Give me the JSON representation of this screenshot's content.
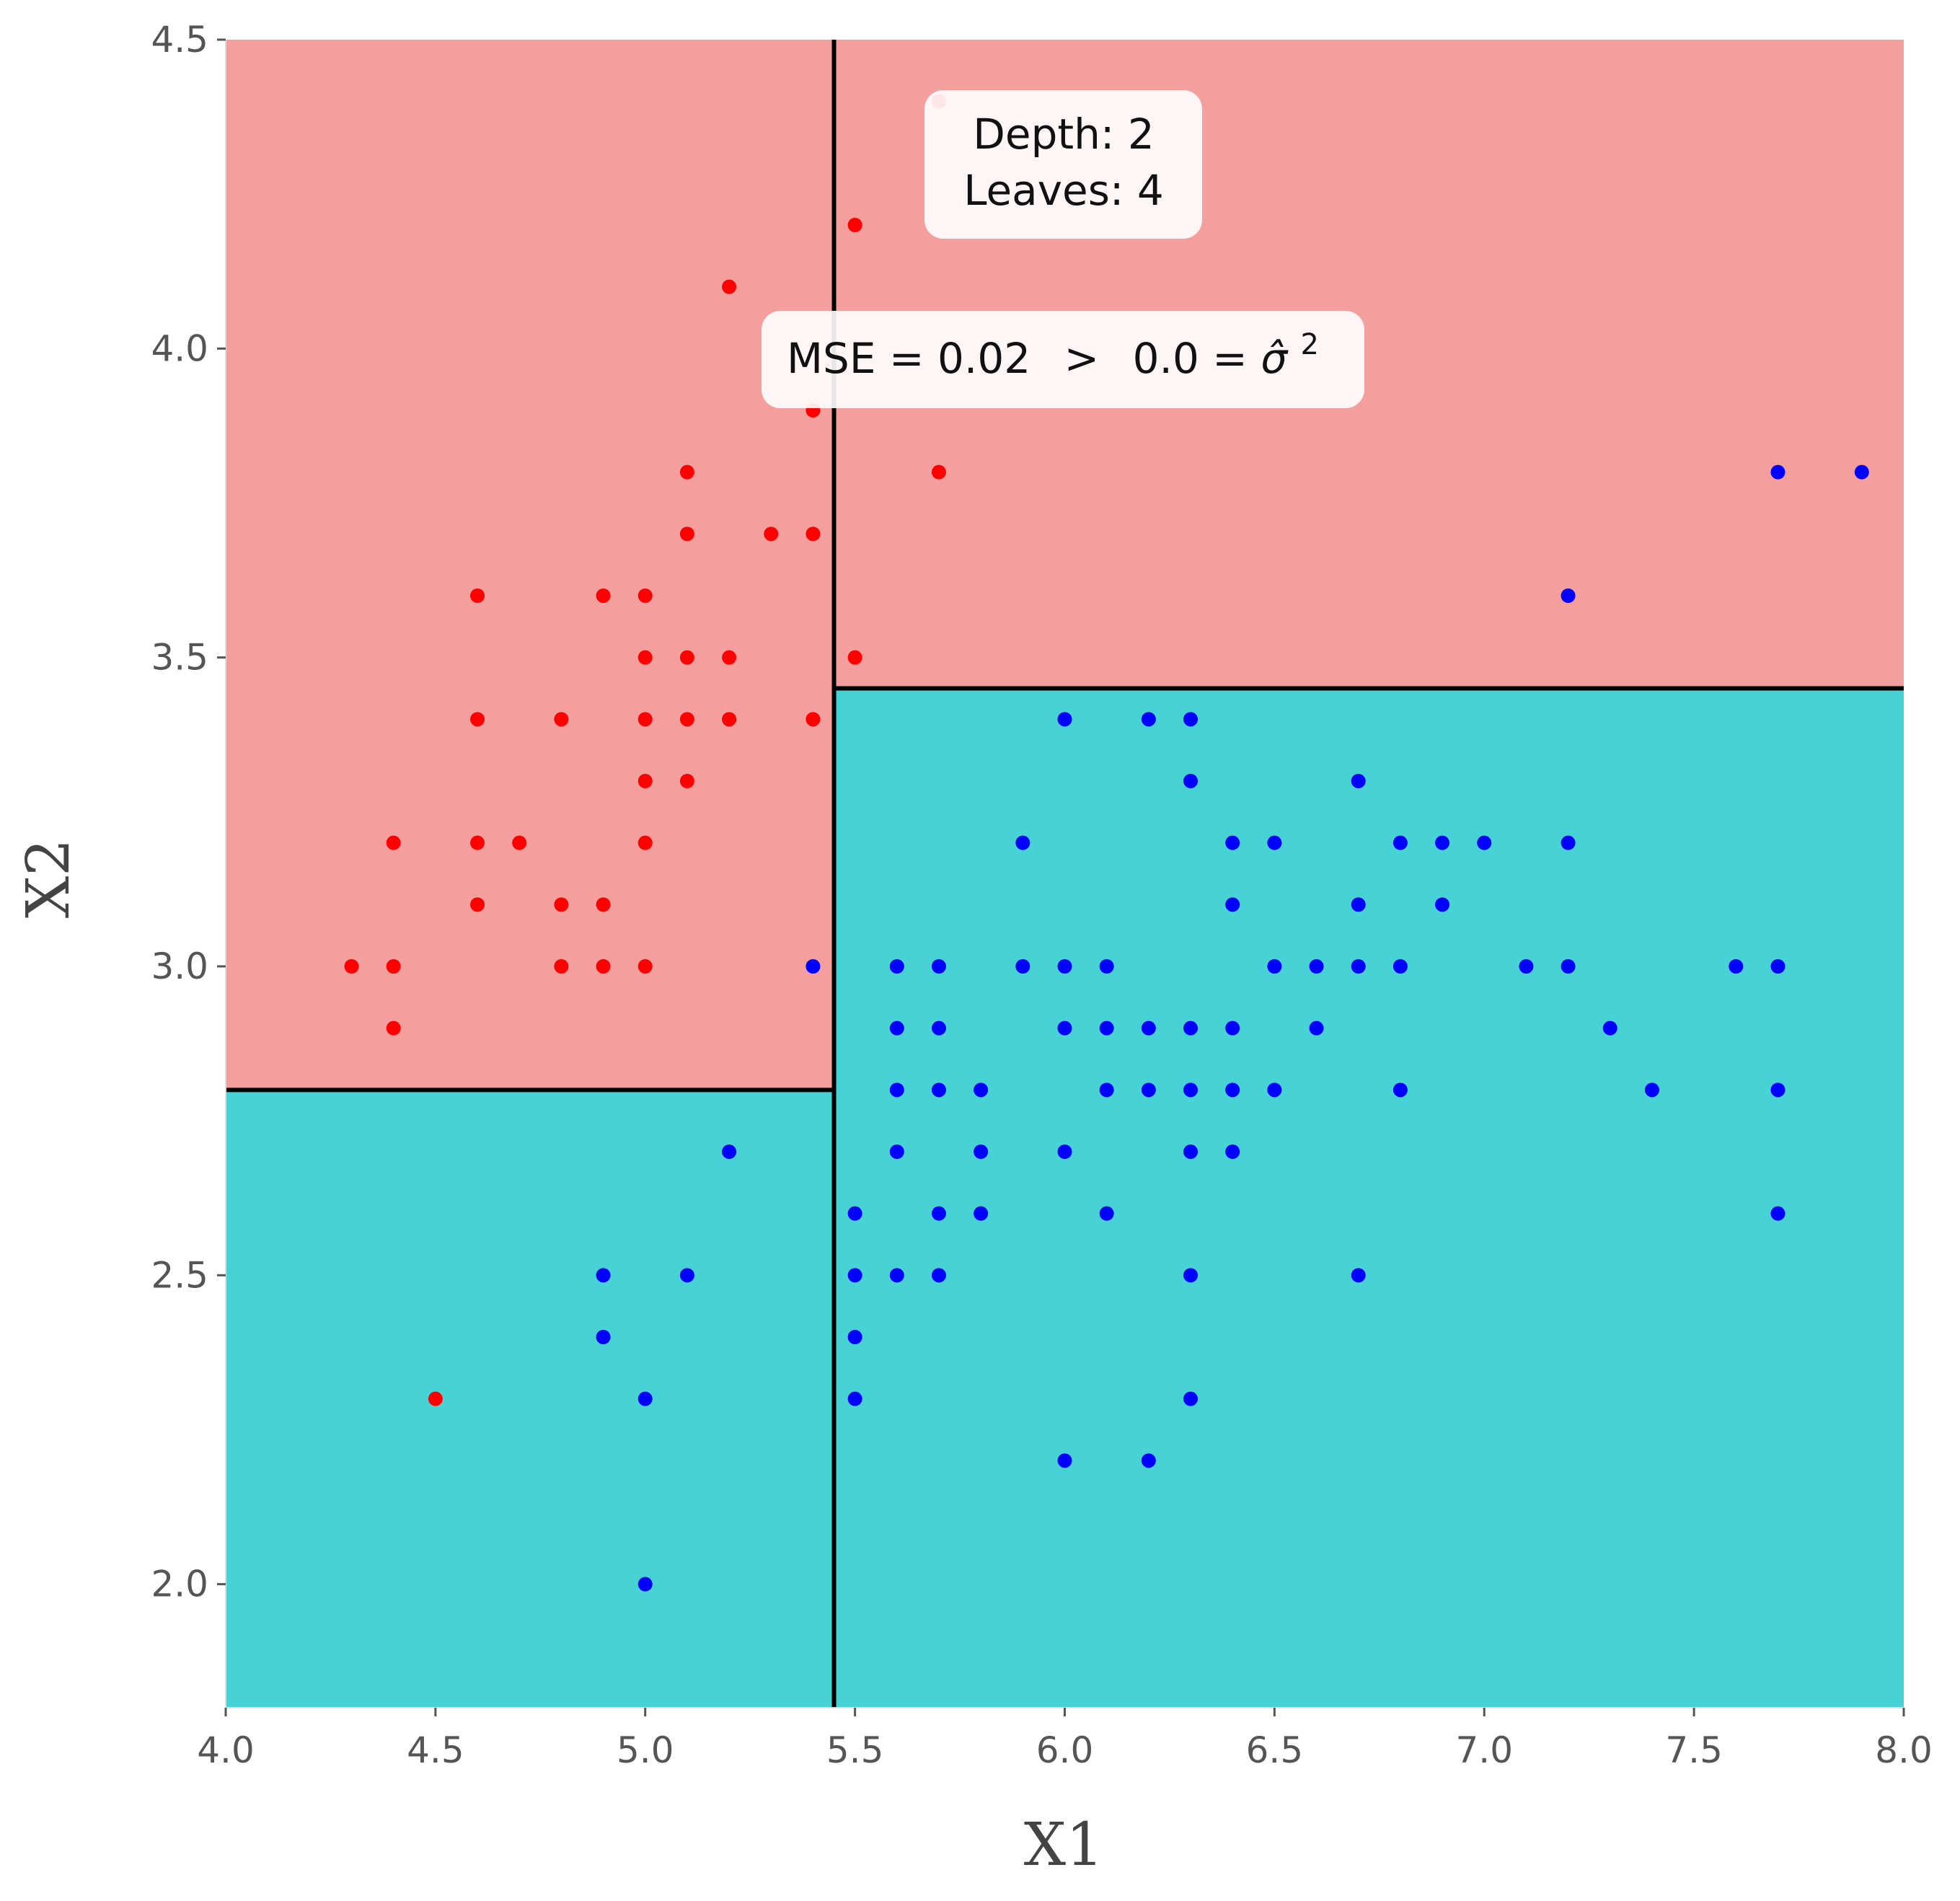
{
  "chart_data": {
    "type": "scatter",
    "xlabel": "X1",
    "ylabel": "X2",
    "xlim": [
      4.0,
      8.0
    ],
    "ylim": [
      1.8,
      4.5
    ],
    "xticks": [
      "4.0",
      "4.5",
      "5.0",
      "5.5",
      "6.0",
      "6.5",
      "7.0",
      "7.5",
      "8.0"
    ],
    "yticks": [
      "2.0",
      "2.5",
      "3.0",
      "3.5",
      "4.0",
      "4.5"
    ],
    "grid": false,
    "annotations": {
      "depth": "Depth: 2",
      "leaves": "Leaves: 4",
      "mse_text": "MSE = 0.02",
      "gt": ">",
      "sigma_value": "0.0 = ",
      "sigma_symbol": "σ̂",
      "sigma_exp": "2"
    },
    "regions": [
      {
        "x": [
          4.0,
          5.45
        ],
        "y": [
          2.8,
          4.5
        ],
        "color": "#f59e9e"
      },
      {
        "x": [
          4.0,
          5.45
        ],
        "y": [
          1.8,
          2.8
        ],
        "color": "#47d3d5"
      },
      {
        "x": [
          5.45,
          8.0
        ],
        "y": [
          3.45,
          4.5
        ],
        "color": "#f59e9e"
      },
      {
        "x": [
          5.45,
          8.0
        ],
        "y": [
          1.8,
          3.45
        ],
        "color": "#47d3d5"
      }
    ],
    "splits": [
      {
        "x": [
          5.45,
          5.45
        ],
        "y": [
          1.8,
          4.5
        ]
      },
      {
        "x": [
          4.0,
          5.45
        ],
        "y": [
          2.8,
          2.8
        ]
      },
      {
        "x": [
          5.45,
          8.0
        ],
        "y": [
          3.45,
          3.45
        ]
      }
    ],
    "series": [
      {
        "color": "#ff0000",
        "points": [
          [
            4.3,
            3.0
          ],
          [
            4.4,
            3.2
          ],
          [
            4.4,
            3.0
          ],
          [
            4.4,
            2.9
          ],
          [
            4.5,
            2.3
          ],
          [
            4.6,
            3.6
          ],
          [
            4.6,
            3.4
          ],
          [
            4.6,
            3.2
          ],
          [
            4.6,
            3.1
          ],
          [
            4.7,
            3.2
          ],
          [
            4.8,
            3.4
          ],
          [
            4.8,
            3.1
          ],
          [
            4.8,
            3.0
          ],
          [
            4.9,
            3.6
          ],
          [
            4.9,
            3.1
          ],
          [
            4.9,
            3.0
          ],
          [
            5.0,
            3.6
          ],
          [
            5.0,
            3.5
          ],
          [
            5.0,
            3.4
          ],
          [
            5.0,
            3.3
          ],
          [
            5.0,
            3.2
          ],
          [
            5.0,
            3.0
          ],
          [
            5.1,
            3.8
          ],
          [
            5.1,
            3.7
          ],
          [
            5.1,
            3.5
          ],
          [
            5.1,
            3.4
          ],
          [
            5.1,
            3.3
          ],
          [
            5.2,
            4.1
          ],
          [
            5.2,
            3.5
          ],
          [
            5.2,
            3.4
          ],
          [
            5.3,
            3.7
          ],
          [
            5.4,
            3.9
          ],
          [
            5.4,
            3.7
          ],
          [
            5.4,
            3.4
          ],
          [
            5.5,
            4.2
          ],
          [
            5.5,
            3.5
          ],
          [
            5.7,
            4.4
          ],
          [
            5.7,
            3.8
          ]
        ]
      },
      {
        "color": "#0000ff",
        "points": [
          [
            4.9,
            2.5
          ],
          [
            4.9,
            2.4
          ],
          [
            5.0,
            2.3
          ],
          [
            5.0,
            2.0
          ],
          [
            5.1,
            2.5
          ],
          [
            5.2,
            2.7
          ],
          [
            5.4,
            3.0
          ],
          [
            5.5,
            2.6
          ],
          [
            5.5,
            2.5
          ],
          [
            5.5,
            2.4
          ],
          [
            5.5,
            2.3
          ],
          [
            5.6,
            3.0
          ],
          [
            5.6,
            2.9
          ],
          [
            5.6,
            2.8
          ],
          [
            5.6,
            2.7
          ],
          [
            5.6,
            2.5
          ],
          [
            5.7,
            3.0
          ],
          [
            5.7,
            2.9
          ],
          [
            5.7,
            2.8
          ],
          [
            5.7,
            2.6
          ],
          [
            5.7,
            2.5
          ],
          [
            5.8,
            2.8
          ],
          [
            5.8,
            2.7
          ],
          [
            5.8,
            2.6
          ],
          [
            5.9,
            3.2
          ],
          [
            5.9,
            3.0
          ],
          [
            6.0,
            3.4
          ],
          [
            6.0,
            3.0
          ],
          [
            6.0,
            2.9
          ],
          [
            6.0,
            2.7
          ],
          [
            6.0,
            2.2
          ],
          [
            6.1,
            3.0
          ],
          [
            6.1,
            2.9
          ],
          [
            6.1,
            2.8
          ],
          [
            6.1,
            2.6
          ],
          [
            6.2,
            3.4
          ],
          [
            6.2,
            2.9
          ],
          [
            6.2,
            2.8
          ],
          [
            6.2,
            2.2
          ],
          [
            6.3,
            3.4
          ],
          [
            6.3,
            3.3
          ],
          [
            6.3,
            2.9
          ],
          [
            6.3,
            2.8
          ],
          [
            6.3,
            2.7
          ],
          [
            6.3,
            2.5
          ],
          [
            6.3,
            2.3
          ],
          [
            6.4,
            3.2
          ],
          [
            6.4,
            3.1
          ],
          [
            6.4,
            2.9
          ],
          [
            6.4,
            2.8
          ],
          [
            6.4,
            2.7
          ],
          [
            6.5,
            3.2
          ],
          [
            6.5,
            3.0
          ],
          [
            6.5,
            2.8
          ],
          [
            6.6,
            3.0
          ],
          [
            6.6,
            2.9
          ],
          [
            6.7,
            3.3
          ],
          [
            6.7,
            3.1
          ],
          [
            6.7,
            3.0
          ],
          [
            6.7,
            2.5
          ],
          [
            6.8,
            3.2
          ],
          [
            6.8,
            3.0
          ],
          [
            6.8,
            2.8
          ],
          [
            6.9,
            3.2
          ],
          [
            6.9,
            3.1
          ],
          [
            7.0,
            3.2
          ],
          [
            7.1,
            3.0
          ],
          [
            7.2,
            3.6
          ],
          [
            7.2,
            3.2
          ],
          [
            7.2,
            3.0
          ],
          [
            7.3,
            2.9
          ],
          [
            7.4,
            2.8
          ],
          [
            7.6,
            3.0
          ],
          [
            7.7,
            3.8
          ],
          [
            7.7,
            3.0
          ],
          [
            7.7,
            2.8
          ],
          [
            7.7,
            2.6
          ],
          [
            7.9,
            3.8
          ]
        ]
      }
    ]
  }
}
